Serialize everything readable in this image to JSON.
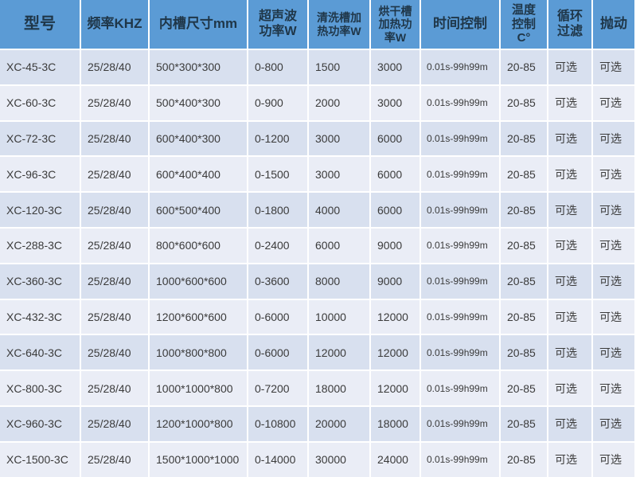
{
  "colors": {
    "header_bg": "#5B9BD5",
    "header_text": "#1F3648",
    "row_odd_bg": "#D8E0EF",
    "row_even_bg": "#EAEDF6",
    "data_text": "#3B3B3B",
    "divider": "#FFFFFF"
  },
  "table": {
    "columns": [
      {
        "id": "model",
        "label": "型号"
      },
      {
        "id": "frequency",
        "label": "频率KHZ"
      },
      {
        "id": "tank-size",
        "label": "内槽尺寸mm"
      },
      {
        "id": "ultrasonic-power",
        "label": "超声波\n功率W"
      },
      {
        "id": "cleaning-heater-power",
        "label": "清洗槽加\n热功率W"
      },
      {
        "id": "drying-heater-power",
        "label": "烘干槽\n加热功\n率W"
      },
      {
        "id": "time-control",
        "label": "时间控制"
      },
      {
        "id": "temp-control",
        "label": "温度\n控制\nC°"
      },
      {
        "id": "circulation-filter",
        "label": "循环\n过滤"
      },
      {
        "id": "agitation",
        "label": "抛动"
      }
    ],
    "rows": [
      [
        "XC-45-3C",
        "25/28/40",
        "500*300*300",
        "0-800",
        "1500",
        "3000",
        "0.01s-99h99m",
        "20-85",
        "可选",
        "可选"
      ],
      [
        "XC-60-3C",
        "25/28/40",
        "500*400*300",
        "0-900",
        "2000",
        "3000",
        "0.01s-99h99m",
        "20-85",
        "可选",
        "可选"
      ],
      [
        "XC-72-3C",
        "25/28/40",
        "600*400*300",
        "0-1200",
        "3000",
        "6000",
        "0.01s-99h99m",
        "20-85",
        "可选",
        "可选"
      ],
      [
        "XC-96-3C",
        "25/28/40",
        "600*400*400",
        "0-1500",
        "3000",
        "6000",
        "0.01s-99h99m",
        "20-85",
        "可选",
        "可选"
      ],
      [
        "XC-120-3C",
        "25/28/40",
        "600*500*400",
        "0-1800",
        "4000",
        "6000",
        "0.01s-99h99m",
        "20-85",
        "可选",
        "可选"
      ],
      [
        "XC-288-3C",
        "25/28/40",
        "800*600*600",
        "0-2400",
        "6000",
        "9000",
        "0.01s-99h99m",
        "20-85",
        "可选",
        "可选"
      ],
      [
        "XC-360-3C",
        "25/28/40",
        "1000*600*600",
        "0-3600",
        "8000",
        "9000",
        "0.01s-99h99m",
        "20-85",
        "可选",
        "可选"
      ],
      [
        "XC-432-3C",
        "25/28/40",
        "1200*600*600",
        "0-6000",
        "10000",
        "12000",
        "0.01s-99h99m",
        "20-85",
        "可选",
        "可选"
      ],
      [
        "XC-640-3C",
        "25/28/40",
        "1000*800*800",
        "0-6000",
        "12000",
        "12000",
        "0.01s-99h99m",
        "20-85",
        "可选",
        "可选"
      ],
      [
        "XC-800-3C",
        "25/28/40",
        "1000*1000*800",
        "0-7200",
        "18000",
        "12000",
        "0.01s-99h99m",
        "20-85",
        "可选",
        "可选"
      ],
      [
        "XC-960-3C",
        "25/28/40",
        "1200*1000*800",
        "0-10800",
        "20000",
        "18000",
        "0.01s-99h99m",
        "20-85",
        "可选",
        "可选"
      ],
      [
        "XC-1500-3C",
        "25/28/40",
        "1500*1000*1000",
        "0-14000",
        "30000",
        "24000",
        "0.01s-99h99m",
        "20-85",
        "可选",
        "可选"
      ]
    ]
  }
}
